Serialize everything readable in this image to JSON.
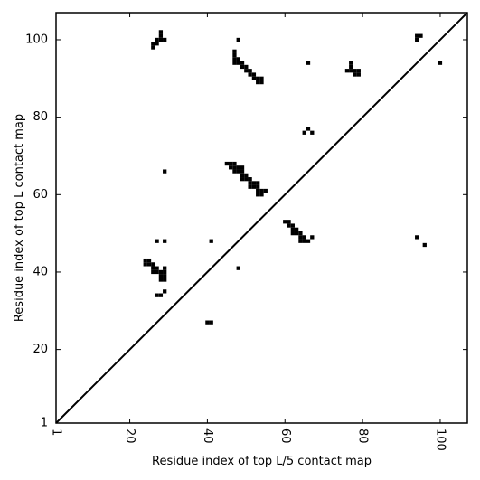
{
  "chart_data": {
    "type": "heatmap",
    "title": "",
    "xlabel": "Residue index of top L/5 contact map",
    "ylabel": "Residue index of top L contact map",
    "xlim": [
      1,
      107
    ],
    "ylim": [
      1,
      107
    ],
    "xticks": [
      1,
      20,
      40,
      60,
      80,
      100
    ],
    "yticks": [
      1,
      20,
      40,
      60,
      80,
      100
    ],
    "xtick_labels": [
      "1",
      "20",
      "40",
      "60",
      "80",
      "100"
    ],
    "ytick_labels": [
      "1",
      "20",
      "40",
      "60",
      "80",
      "100"
    ],
    "xtick_rotation_deg": 90,
    "diagonal_line": true,
    "grid": false,
    "cell_color": "#000000",
    "contacts": [
      [
        26,
        98
      ],
      [
        26,
        99
      ],
      [
        27,
        99
      ],
      [
        27,
        100
      ],
      [
        28,
        100
      ],
      [
        29,
        100
      ],
      [
        28,
        101
      ],
      [
        28,
        102
      ],
      [
        48,
        100
      ],
      [
        47,
        94
      ],
      [
        48,
        94
      ],
      [
        47,
        95
      ],
      [
        48,
        95
      ],
      [
        47,
        96
      ],
      [
        47,
        97
      ],
      [
        49,
        93
      ],
      [
        49,
        94
      ],
      [
        50,
        92
      ],
      [
        50,
        93
      ],
      [
        51,
        91
      ],
      [
        51,
        92
      ],
      [
        52,
        90
      ],
      [
        52,
        91
      ],
      [
        53,
        89
      ],
      [
        53,
        90
      ],
      [
        54,
        89
      ],
      [
        54,
        90
      ],
      [
        66,
        94
      ],
      [
        76,
        92
      ],
      [
        77,
        92
      ],
      [
        77,
        93
      ],
      [
        77,
        94
      ],
      [
        78,
        91
      ],
      [
        78,
        92
      ],
      [
        79,
        91
      ],
      [
        79,
        92
      ],
      [
        94,
        100
      ],
      [
        94,
        101
      ],
      [
        95,
        101
      ],
      [
        100,
        94
      ],
      [
        65,
        76
      ],
      [
        66,
        77
      ],
      [
        67,
        76
      ],
      [
        29,
        66
      ],
      [
        45,
        68
      ],
      [
        46,
        67
      ],
      [
        46,
        68
      ],
      [
        47,
        66
      ],
      [
        47,
        67
      ],
      [
        47,
        68
      ],
      [
        48,
        66
      ],
      [
        48,
        67
      ],
      [
        49,
        64
      ],
      [
        49,
        65
      ],
      [
        49,
        66
      ],
      [
        49,
        67
      ],
      [
        50,
        64
      ],
      [
        50,
        65
      ],
      [
        51,
        62
      ],
      [
        51,
        63
      ],
      [
        51,
        64
      ],
      [
        52,
        62
      ],
      [
        52,
        63
      ],
      [
        53,
        60
      ],
      [
        53,
        61
      ],
      [
        53,
        62
      ],
      [
        53,
        63
      ],
      [
        54,
        60
      ],
      [
        54,
        61
      ],
      [
        55,
        61
      ],
      [
        60,
        53
      ],
      [
        61,
        52
      ],
      [
        61,
        53
      ],
      [
        62,
        50
      ],
      [
        62,
        51
      ],
      [
        62,
        52
      ],
      [
        63,
        50
      ],
      [
        63,
        51
      ],
      [
        64,
        48
      ],
      [
        64,
        49
      ],
      [
        64,
        50
      ],
      [
        65,
        48
      ],
      [
        65,
        49
      ],
      [
        66,
        48
      ],
      [
        67,
        49
      ],
      [
        27,
        48
      ],
      [
        29,
        48
      ],
      [
        41,
        48
      ],
      [
        94,
        49
      ],
      [
        96,
        47
      ],
      [
        24,
        42
      ],
      [
        24,
        43
      ],
      [
        25,
        42
      ],
      [
        25,
        43
      ],
      [
        26,
        40
      ],
      [
        26,
        41
      ],
      [
        26,
        42
      ],
      [
        27,
        40
      ],
      [
        27,
        41
      ],
      [
        28,
        39
      ],
      [
        28,
        40
      ],
      [
        29,
        38
      ],
      [
        29,
        39
      ],
      [
        29,
        40
      ],
      [
        29,
        41
      ],
      [
        28,
        38
      ],
      [
        48,
        41
      ],
      [
        27,
        34
      ],
      [
        28,
        34
      ],
      [
        29,
        35
      ],
      [
        40,
        27
      ],
      [
        41,
        27
      ]
    ]
  }
}
